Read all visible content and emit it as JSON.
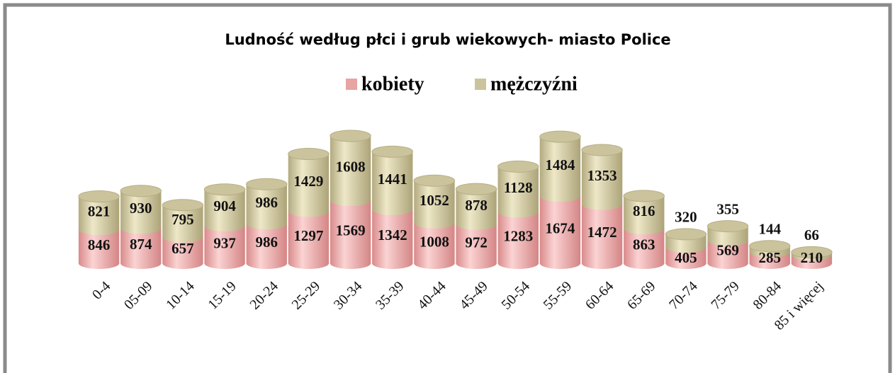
{
  "chart_data": {
    "type": "bar",
    "stacked": true,
    "cylinder": true,
    "title": "Ludność według płci i grub wiekowych- miasto Police",
    "categories": [
      "0-4",
      "05-09",
      "10-14",
      "15-19",
      "20-24",
      "25-29",
      "30-34",
      "35-39",
      "40-44",
      "45-49",
      "50-54",
      "55-59",
      "60-64",
      "65-69",
      "70-74",
      "75-79",
      "80-84",
      "85 i więcej"
    ],
    "series": [
      {
        "name": "kobiety",
        "color": "#e8a3a3",
        "values": [
          846,
          874,
          657,
          937,
          986,
          1297,
          1569,
          1342,
          1008,
          972,
          1283,
          1674,
          1472,
          863,
          405,
          569,
          285,
          210
        ]
      },
      {
        "name": "mężczyźni",
        "color": "#cbc39c",
        "values": [
          821,
          930,
          795,
          904,
          986,
          1429,
          1608,
          1441,
          1052,
          878,
          1128,
          1484,
          1353,
          816,
          320,
          355,
          144,
          66
        ]
      }
    ],
    "legend": "top"
  }
}
